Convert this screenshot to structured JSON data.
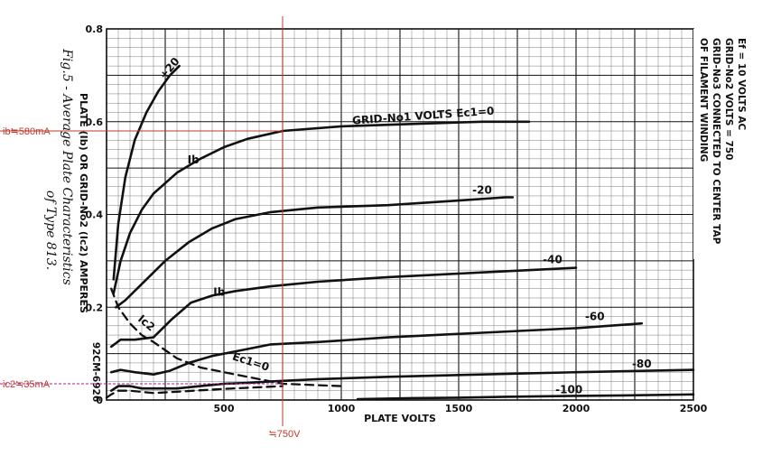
{
  "chart_data": {
    "type": "line",
    "title": "Fig.5 - Average Plate Characteristics of Type 813.",
    "code": "92CM-6926",
    "xlabel": "PLATE VOLTS",
    "ylabel": "PLATE (Ib) OR GRID-No2 (Ic2) AMPERES",
    "xlim": [
      0,
      2500
    ],
    "ylim": [
      0,
      0.8
    ],
    "xticks": [
      0,
      500,
      1000,
      1500,
      2000,
      2500
    ],
    "xtick_labels": [
      "0",
      "500",
      "1000",
      "1500",
      "2000",
      "2500"
    ],
    "yticks": [
      0,
      0.2,
      0.4,
      0.6,
      0.8
    ],
    "ytick_labels": [
      "0",
      "0.2",
      "0.4",
      "0.6",
      "0.8"
    ],
    "conditions": [
      "Ef = 10 VOLTS AC",
      "GRID-No2 VOLTS = 750",
      "GRID-No3 CONNECTED TO CENTER TAP",
      "OF FILAMENT WINDING"
    ],
    "series": [
      {
        "name": "+20",
        "kind": "ib",
        "x": [
          30,
          50,
          80,
          120,
          170,
          220,
          270,
          310
        ],
        "y": [
          0.26,
          0.38,
          0.48,
          0.56,
          0.62,
          0.665,
          0.7,
          0.72
        ]
      },
      {
        "name": "0",
        "kind": "ib",
        "x": [
          30,
          60,
          100,
          150,
          200,
          300,
          400,
          500,
          600,
          750,
          1000,
          1300,
          1600,
          1800
        ],
        "y": [
          0.23,
          0.3,
          0.36,
          0.41,
          0.445,
          0.49,
          0.52,
          0.545,
          0.563,
          0.58,
          0.59,
          0.595,
          0.6,
          0.6
        ]
      },
      {
        "name": "-20",
        "kind": "ib",
        "x": [
          40,
          80,
          150,
          250,
          350,
          450,
          550,
          700,
          900,
          1200,
          1500,
          1700,
          1730
        ],
        "y": [
          0.2,
          0.215,
          0.25,
          0.3,
          0.34,
          0.37,
          0.39,
          0.405,
          0.415,
          0.42,
          0.43,
          0.437,
          0.437
        ]
      },
      {
        "name": "-40",
        "kind": "ib",
        "x": [
          20,
          60,
          120,
          200,
          280,
          360,
          450,
          550,
          700,
          900,
          1200,
          1600,
          2000
        ],
        "y": [
          0.115,
          0.13,
          0.13,
          0.135,
          0.175,
          0.21,
          0.225,
          0.235,
          0.245,
          0.255,
          0.265,
          0.275,
          0.285
        ]
      },
      {
        "name": "-60",
        "kind": "ib",
        "x": [
          20,
          60,
          120,
          200,
          270,
          350,
          450,
          550,
          700,
          900,
          1200,
          1600,
          2000,
          2280
        ],
        "y": [
          0.06,
          0.065,
          0.06,
          0.055,
          0.063,
          0.08,
          0.095,
          0.105,
          0.12,
          0.125,
          0.135,
          0.145,
          0.155,
          0.165
        ]
      },
      {
        "name": "-80",
        "kind": "ib",
        "x": [
          20,
          50,
          100,
          150,
          200,
          300,
          400,
          500,
          600,
          700,
          900,
          1200,
          1600,
          2000,
          2500
        ],
        "y": [
          0.02,
          0.03,
          0.03,
          0.025,
          0.025,
          0.025,
          0.03,
          0.035,
          0.037,
          0.04,
          0.045,
          0.05,
          0.055,
          0.06,
          0.065
        ]
      },
      {
        "name": "-100",
        "kind": "ib",
        "x": [
          1070,
          1300,
          1500,
          1700,
          2000,
          2200,
          2500
        ],
        "y": [
          0.002,
          0.004,
          0.005,
          0.007,
          0.009,
          0.01,
          0.012
        ]
      },
      {
        "name": "Ic2 Ec1=0",
        "kind": "ic2",
        "x": [
          20,
          50,
          100,
          150,
          200,
          300,
          400,
          500,
          600,
          750,
          1000
        ],
        "y": [
          0.24,
          0.2,
          0.165,
          0.14,
          0.125,
          0.09,
          0.07,
          0.06,
          0.05,
          0.035,
          0.03
        ]
      },
      {
        "name": "Ic2",
        "kind": "ic2",
        "x": [
          0,
          20,
          50,
          100,
          200,
          300,
          500,
          750
        ],
        "y": [
          0.005,
          0.012,
          0.02,
          0.02,
          0.015,
          0.018,
          0.024,
          0.03
        ]
      }
    ],
    "curve_labels": [
      {
        "text": "+20",
        "x": 280,
        "y": 0.71
      },
      {
        "text": "Ib",
        "x": 370,
        "y": 0.51
      },
      {
        "text": "GRID-No1 VOLTS Ec1=0",
        "x": 1350,
        "y": 0.605
      },
      {
        "text": "-20",
        "x": 1600,
        "y": 0.445
      },
      {
        "text": "-40",
        "x": 1900,
        "y": 0.295
      },
      {
        "text": "Ib",
        "x": 480,
        "y": 0.225
      },
      {
        "text": "Ic2",
        "x": 160,
        "y": 0.16
      },
      {
        "text": "Ec1=0",
        "x": 610,
        "y": 0.075
      },
      {
        "text": "-60",
        "x": 2080,
        "y": 0.172
      },
      {
        "text": "-80",
        "x": 2280,
        "y": 0.07
      },
      {
        "text": "-100",
        "x": 1970,
        "y": 0.015
      }
    ],
    "annotations": {
      "ib_label": "ib≒580mA",
      "ic2_label": "ic2≒35mA",
      "vp_label": "≒750V",
      "vp_value": 750,
      "ib_value": 0.58,
      "ic2_value": 0.035
    }
  }
}
